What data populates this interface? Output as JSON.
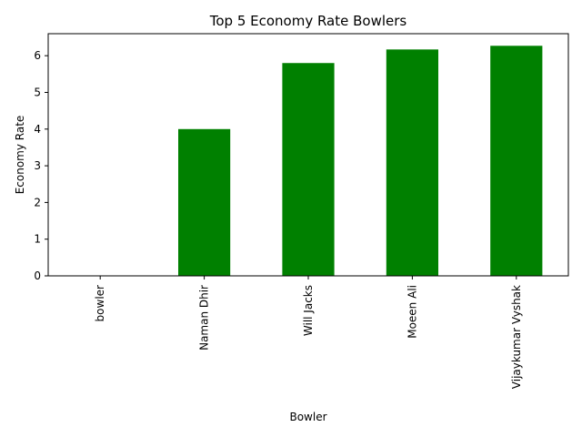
{
  "chart_data": {
    "type": "bar",
    "title": "Top 5 Economy Rate Bowlers",
    "xlabel": "Bowler",
    "ylabel": "Economy Rate",
    "categories": [
      "bowler",
      "Naman Dhir",
      "Will Jacks",
      "Moeen Ali",
      "Vijaykumar Vyshak"
    ],
    "values": [
      0,
      4.0,
      5.8,
      6.17,
      6.27
    ],
    "ylim": [
      0,
      6.6
    ],
    "yticks": [
      "0",
      "1",
      "2",
      "3",
      "4",
      "5",
      "6"
    ],
    "bar_color": "#008000",
    "grid": false,
    "legend": false
  }
}
